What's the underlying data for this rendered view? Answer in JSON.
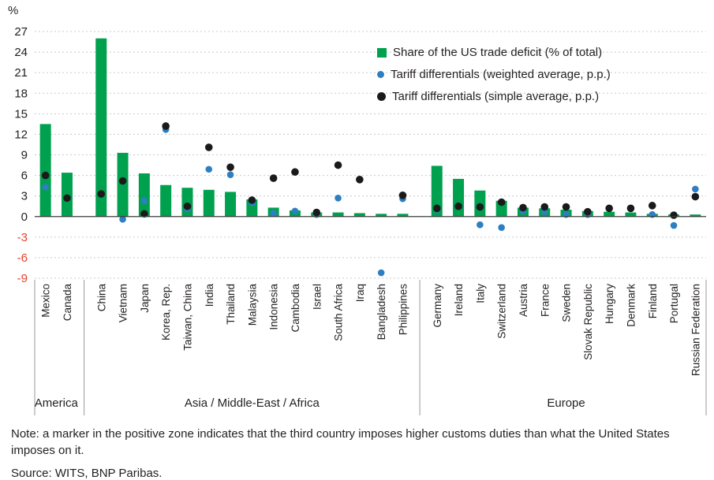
{
  "chart_data": {
    "type": "bar",
    "title": "",
    "ylabel": "%",
    "ylim": [
      -9,
      27
    ],
    "ytick_step": 3,
    "grid": true,
    "legend_position": "top-right-inside",
    "colors": {
      "bar": "#00a14e",
      "weighted_dot": "#2d7fc1",
      "simple_dot": "#1a1a1a",
      "negative_tick": "#e8402e",
      "text": "#231f20",
      "gridline": "#c9c9c9",
      "axis": "#3a3a3a",
      "separator": "#9a9a9a"
    },
    "legend": [
      {
        "label": "Share of the US trade deficit (% of total)",
        "marker": "square",
        "color": "#00a14e"
      },
      {
        "label": "Tariff differentials (weighted average, p.p.)",
        "marker": "circle",
        "color": "#2d7fc1"
      },
      {
        "label": "Tariff differentials (simple average, p.p.)",
        "marker": "circle",
        "color": "#1a1a1a"
      }
    ],
    "groups": [
      {
        "label": "America",
        "countries": [
          {
            "name": "Mexico",
            "deficit_share": 13.5,
            "tariff_weighted": 4.3,
            "tariff_simple": 6.0
          },
          {
            "name": "Canada",
            "deficit_share": 6.4,
            "tariff_weighted": null,
            "tariff_simple": 2.7
          }
        ]
      },
      {
        "label": "Asia / Middle-East / Africa",
        "countries": [
          {
            "name": "China",
            "deficit_share": 26.0,
            "tariff_weighted": null,
            "tariff_simple": 3.3
          },
          {
            "name": "Vietnam",
            "deficit_share": 9.3,
            "tariff_weighted": -0.4,
            "tariff_simple": 5.2
          },
          {
            "name": "Japan",
            "deficit_share": 6.3,
            "tariff_weighted": 2.3,
            "tariff_simple": 0.4
          },
          {
            "name": "Korea, Rep.",
            "deficit_share": 4.6,
            "tariff_weighted": 12.7,
            "tariff_simple": 13.2
          },
          {
            "name": "Taiwan, China",
            "deficit_share": 4.2,
            "tariff_weighted": 1.1,
            "tariff_simple": 1.5
          },
          {
            "name": "India",
            "deficit_share": 3.9,
            "tariff_weighted": 6.9,
            "tariff_simple": 10.1
          },
          {
            "name": "Thailand",
            "deficit_share": 3.6,
            "tariff_weighted": 6.1,
            "tariff_simple": 7.2
          },
          {
            "name": "Malaysia",
            "deficit_share": 2.5,
            "tariff_weighted": 2.0,
            "tariff_simple": 2.4
          },
          {
            "name": "Indonesia",
            "deficit_share": 1.3,
            "tariff_weighted": 0.5,
            "tariff_simple": 5.6
          },
          {
            "name": "Cambodia",
            "deficit_share": 0.9,
            "tariff_weighted": 0.8,
            "tariff_simple": 6.5
          },
          {
            "name": "Israel",
            "deficit_share": 0.6,
            "tariff_weighted": 0.3,
            "tariff_simple": 0.6
          },
          {
            "name": "South Africa",
            "deficit_share": 0.6,
            "tariff_weighted": 2.7,
            "tariff_simple": 7.5
          },
          {
            "name": "Iraq",
            "deficit_share": 0.5,
            "tariff_weighted": null,
            "tariff_simple": 5.4
          },
          {
            "name": "Bangladesh",
            "deficit_share": 0.4,
            "tariff_weighted": -8.2,
            "tariff_simple": null
          },
          {
            "name": "Philippines",
            "deficit_share": 0.4,
            "tariff_weighted": 2.6,
            "tariff_simple": 3.1
          }
        ]
      },
      {
        "label": "Europe",
        "countries": [
          {
            "name": "Germany",
            "deficit_share": 7.4,
            "tariff_weighted": 1.0,
            "tariff_simple": 1.2
          },
          {
            "name": "Ireland",
            "deficit_share": 5.5,
            "tariff_weighted": null,
            "tariff_simple": 1.5
          },
          {
            "name": "Italy",
            "deficit_share": 3.8,
            "tariff_weighted": -1.2,
            "tariff_simple": 1.4
          },
          {
            "name": "Switzerland",
            "deficit_share": 2.3,
            "tariff_weighted": -1.6,
            "tariff_simple": 2.1
          },
          {
            "name": "Austria",
            "deficit_share": 1.3,
            "tariff_weighted": 0.8,
            "tariff_simple": 1.3
          },
          {
            "name": "France",
            "deficit_share": 1.2,
            "tariff_weighted": 0.7,
            "tariff_simple": 1.4
          },
          {
            "name": "Sweden",
            "deficit_share": 1.0,
            "tariff_weighted": 0.3,
            "tariff_simple": 1.4
          },
          {
            "name": "Slovak Republic",
            "deficit_share": 0.8,
            "tariff_weighted": 0.3,
            "tariff_simple": 0.7
          },
          {
            "name": "Hungary",
            "deficit_share": 0.7,
            "tariff_weighted": null,
            "tariff_simple": 1.2
          },
          {
            "name": "Denmark",
            "deficit_share": 0.6,
            "tariff_weighted": null,
            "tariff_simple": 1.2
          },
          {
            "name": "Finland",
            "deficit_share": 0.4,
            "tariff_weighted": 0.3,
            "tariff_simple": 1.6
          },
          {
            "name": "Portugal",
            "deficit_share": 0.3,
            "tariff_weighted": -1.3,
            "tariff_simple": 0.2
          },
          {
            "name": "Russian Federation",
            "deficit_share": 0.3,
            "tariff_weighted": 4.0,
            "tariff_simple": 2.9
          }
        ]
      }
    ]
  },
  "note": {
    "text": "Note: a marker in the positive zone indicates that the third country imposes higher customs duties than what the United States imposes on it."
  },
  "source": {
    "text": "Source: WITS, BNP Paribas."
  }
}
